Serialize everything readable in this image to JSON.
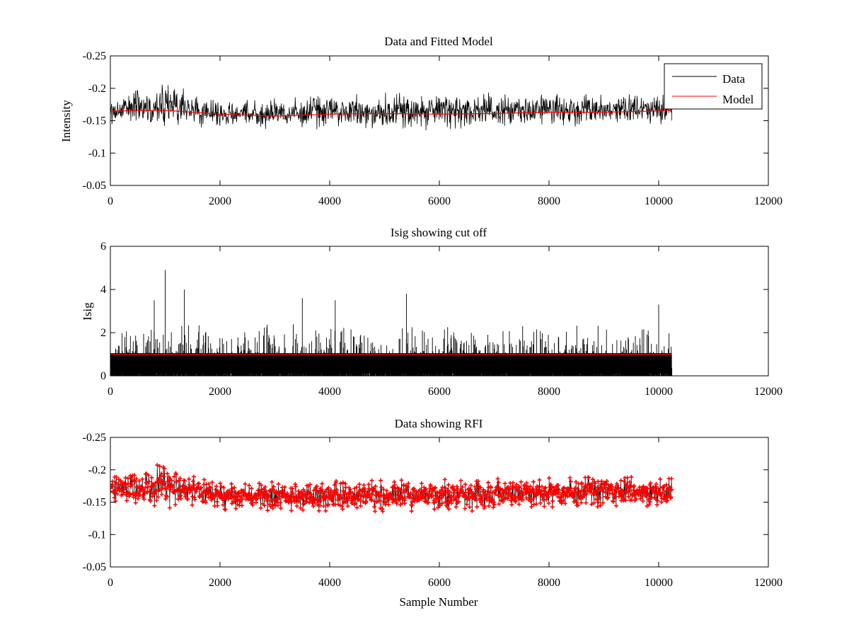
{
  "chart_data": [
    {
      "id": "p1",
      "type": "line",
      "title": "Data and Fitted Model",
      "xlabel": "",
      "ylabel": "Intensity",
      "xlim": [
        0,
        12000
      ],
      "ylim": [
        -0.25,
        -0.05
      ],
      "y_direction": "reversed",
      "xticks": [
        "0",
        "2000",
        "4000",
        "6000",
        "8000",
        "10000",
        "12000"
      ],
      "yticks": [
        "-0.05",
        "-0.1",
        "-0.15",
        "-0.2",
        "-0.25"
      ],
      "xtick_values": [
        0,
        2000,
        4000,
        6000,
        8000,
        10000,
        12000
      ],
      "ytick_values": [
        -0.05,
        -0.1,
        -0.15,
        -0.2,
        -0.25
      ],
      "legend": {
        "placement": "top-right",
        "entries": [
          "Data",
          "Model"
        ]
      },
      "series": [
        {
          "name": "Data",
          "color": "#000000",
          "style": "noisy line",
          "x_range": [
            0,
            10240
          ],
          "envelope_min": [
            [
              0,
              -0.185
            ],
            [
              1000,
              -0.21
            ],
            [
              2000,
              -0.18
            ],
            [
              5400,
              -0.195
            ],
            [
              10240,
              -0.19
            ]
          ],
          "envelope_max": [
            [
              0,
              -0.145
            ],
            [
              2000,
              -0.138
            ],
            [
              6000,
              -0.135
            ],
            [
              10240,
              -0.145
            ]
          ]
        },
        {
          "name": "Model",
          "color": "#ff0000",
          "x": [
            0,
            1000,
            2000,
            2400,
            3000,
            4000,
            5000,
            6000,
            7000,
            8000,
            9000,
            10000,
            10240
          ],
          "y": [
            -0.165,
            -0.166,
            -0.16,
            -0.159,
            -0.157,
            -0.16,
            -0.161,
            -0.16,
            -0.161,
            -0.163,
            -0.163,
            -0.165,
            -0.166
          ]
        }
      ]
    },
    {
      "id": "p2",
      "type": "line",
      "title": "Isig showing cut off",
      "xlabel": "",
      "ylabel": "Isig",
      "xlim": [
        0,
        12000
      ],
      "ylim": [
        0,
        6
      ],
      "y_direction": "normal",
      "xticks": [
        "0",
        "2000",
        "4000",
        "6000",
        "8000",
        "10000",
        "12000"
      ],
      "yticks": [
        "0",
        "2",
        "4",
        "6"
      ],
      "xtick_values": [
        0,
        2000,
        4000,
        6000,
        8000,
        10000,
        12000
      ],
      "ytick_values": [
        0,
        2,
        4,
        6
      ],
      "series": [
        {
          "color": "#000000",
          "style": "noisy line",
          "x_range": [
            0,
            10240
          ],
          "typical_max": 2.4,
          "peaks": [
            [
              1000,
              4.9
            ],
            [
              1350,
              4.0
            ],
            [
              3500,
              3.6
            ],
            [
              4100,
              3.5
            ],
            [
              5400,
              3.8
            ],
            [
              800,
              3.5
            ],
            [
              10000,
              3.3
            ]
          ]
        },
        {
          "color": "#ff0000",
          "style": "cut-off line",
          "x": [
            0,
            10240
          ],
          "y": [
            1.0,
            1.0
          ]
        }
      ]
    },
    {
      "id": "p3",
      "type": "scatter",
      "title": "Data showing RFI",
      "xlabel": "Sample Number",
      "ylabel": "",
      "xlim": [
        0,
        12000
      ],
      "ylim": [
        -0.25,
        -0.05
      ],
      "y_direction": "reversed",
      "xticks": [
        "0",
        "2000",
        "4000",
        "6000",
        "8000",
        "10000",
        "12000"
      ],
      "yticks": [
        "-0.05",
        "-0.1",
        "-0.15",
        "-0.2",
        "-0.25"
      ],
      "xtick_values": [
        0,
        2000,
        4000,
        6000,
        8000,
        10000,
        12000
      ],
      "ytick_values": [
        -0.05,
        -0.1,
        -0.15,
        -0.2,
        -0.25
      ],
      "series": [
        {
          "color": "#ff0000",
          "style": "dense points with markers",
          "x_range": [
            0,
            10240
          ],
          "envelope_min": [
            [
              0,
              -0.19
            ],
            [
              1000,
              -0.21
            ],
            [
              2000,
              -0.18
            ],
            [
              10240,
              -0.19
            ]
          ],
          "envelope_max": [
            [
              0,
              -0.145
            ],
            [
              2000,
              -0.138
            ],
            [
              6000,
              -0.135
            ],
            [
              10240,
              -0.145
            ]
          ]
        }
      ]
    }
  ]
}
